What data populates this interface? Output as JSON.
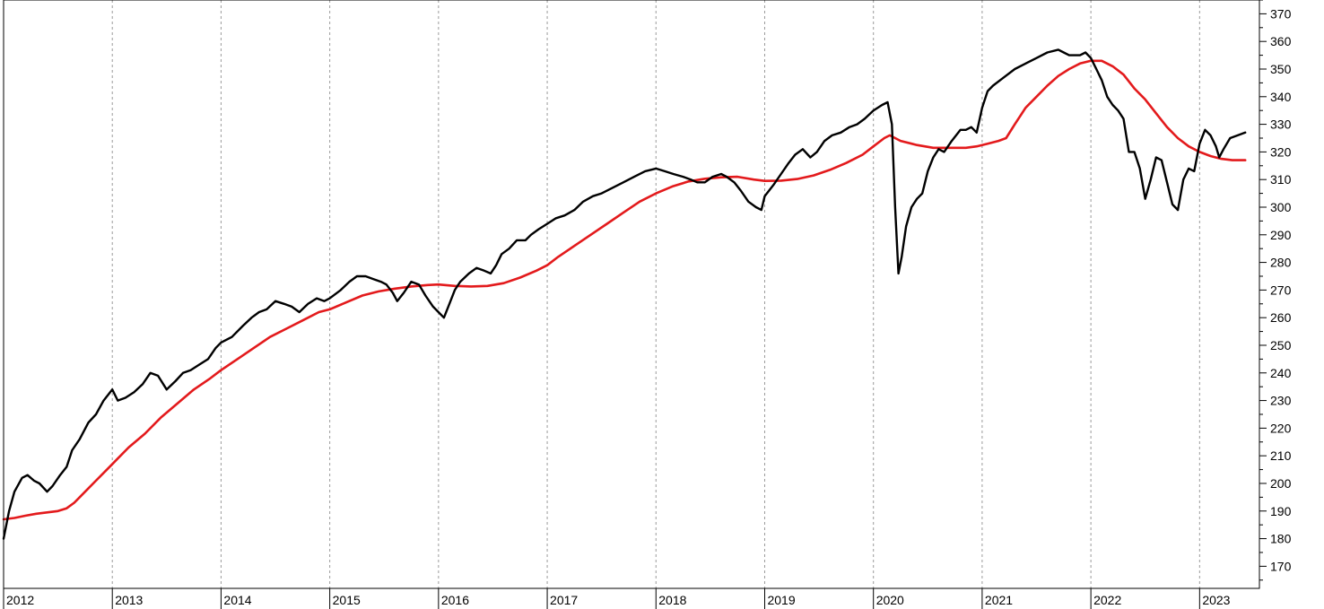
{
  "chart_data": {
    "type": "line",
    "title": "",
    "xlabel": "",
    "ylabel": "",
    "grid": "vertical dashed lines at each year",
    "x_ticks": [
      "2012",
      "2013",
      "2014",
      "2015",
      "2016",
      "2017",
      "2018",
      "2019",
      "2020",
      "2021",
      "2022",
      "2023"
    ],
    "y_ticks": [
      170,
      180,
      190,
      200,
      210,
      220,
      230,
      240,
      250,
      260,
      270,
      280,
      290,
      300,
      310,
      320,
      330,
      340,
      350,
      360,
      370
    ],
    "xlim": [
      2012.0,
      2023.55
    ],
    "ylim": [
      162,
      375
    ],
    "series": [
      {
        "color": "#000000",
        "points": [
          [
            2012.0,
            180
          ],
          [
            2012.05,
            190
          ],
          [
            2012.1,
            197
          ],
          [
            2012.17,
            202
          ],
          [
            2012.22,
            203
          ],
          [
            2012.28,
            201
          ],
          [
            2012.33,
            200
          ],
          [
            2012.4,
            197
          ],
          [
            2012.45,
            199
          ],
          [
            2012.52,
            203
          ],
          [
            2012.58,
            206
          ],
          [
            2012.63,
            212
          ],
          [
            2012.7,
            216
          ],
          [
            2012.78,
            222
          ],
          [
            2012.85,
            225
          ],
          [
            2012.92,
            230
          ],
          [
            2013.0,
            234
          ],
          [
            2013.05,
            230
          ],
          [
            2013.12,
            231
          ],
          [
            2013.2,
            233
          ],
          [
            2013.28,
            236
          ],
          [
            2013.35,
            240
          ],
          [
            2013.42,
            239
          ],
          [
            2013.5,
            234
          ],
          [
            2013.58,
            237
          ],
          [
            2013.65,
            240
          ],
          [
            2013.72,
            241
          ],
          [
            2013.8,
            243
          ],
          [
            2013.88,
            245
          ],
          [
            2013.95,
            249
          ],
          [
            2014.0,
            251
          ],
          [
            2014.1,
            253
          ],
          [
            2014.2,
            257
          ],
          [
            2014.28,
            260
          ],
          [
            2014.35,
            262
          ],
          [
            2014.42,
            263
          ],
          [
            2014.5,
            266
          ],
          [
            2014.58,
            265
          ],
          [
            2014.65,
            264
          ],
          [
            2014.72,
            262
          ],
          [
            2014.8,
            265
          ],
          [
            2014.88,
            267
          ],
          [
            2014.95,
            266
          ],
          [
            2015.0,
            267
          ],
          [
            2015.1,
            270
          ],
          [
            2015.18,
            273
          ],
          [
            2015.25,
            275
          ],
          [
            2015.33,
            275
          ],
          [
            2015.4,
            274
          ],
          [
            2015.47,
            273
          ],
          [
            2015.52,
            272
          ],
          [
            2015.58,
            269
          ],
          [
            2015.62,
            266
          ],
          [
            2015.68,
            269
          ],
          [
            2015.75,
            273
          ],
          [
            2015.82,
            272
          ],
          [
            2015.88,
            268
          ],
          [
            2015.95,
            264
          ],
          [
            2016.0,
            262
          ],
          [
            2016.05,
            260
          ],
          [
            2016.1,
            265
          ],
          [
            2016.15,
            270
          ],
          [
            2016.2,
            273
          ],
          [
            2016.28,
            276
          ],
          [
            2016.35,
            278
          ],
          [
            2016.42,
            277
          ],
          [
            2016.48,
            276
          ],
          [
            2016.53,
            279
          ],
          [
            2016.58,
            283
          ],
          [
            2016.65,
            285
          ],
          [
            2016.72,
            288
          ],
          [
            2016.8,
            288
          ],
          [
            2016.85,
            290
          ],
          [
            2016.92,
            292
          ],
          [
            2017.0,
            294
          ],
          [
            2017.08,
            296
          ],
          [
            2017.16,
            297
          ],
          [
            2017.25,
            299
          ],
          [
            2017.33,
            302
          ],
          [
            2017.42,
            304
          ],
          [
            2017.5,
            305
          ],
          [
            2017.6,
            307
          ],
          [
            2017.7,
            309
          ],
          [
            2017.8,
            311
          ],
          [
            2017.9,
            313
          ],
          [
            2018.0,
            314
          ],
          [
            2018.08,
            313
          ],
          [
            2018.16,
            312
          ],
          [
            2018.25,
            311
          ],
          [
            2018.32,
            310
          ],
          [
            2018.38,
            309
          ],
          [
            2018.45,
            309
          ],
          [
            2018.52,
            311
          ],
          [
            2018.6,
            312
          ],
          [
            2018.65,
            311
          ],
          [
            2018.72,
            309
          ],
          [
            2018.78,
            306
          ],
          [
            2018.85,
            302
          ],
          [
            2018.92,
            300
          ],
          [
            2018.97,
            299
          ],
          [
            2019.0,
            304
          ],
          [
            2019.08,
            308
          ],
          [
            2019.15,
            312
          ],
          [
            2019.22,
            316
          ],
          [
            2019.28,
            319
          ],
          [
            2019.35,
            321
          ],
          [
            2019.42,
            318
          ],
          [
            2019.48,
            320
          ],
          [
            2019.55,
            324
          ],
          [
            2019.62,
            326
          ],
          [
            2019.7,
            327
          ],
          [
            2019.78,
            329
          ],
          [
            2019.85,
            330
          ],
          [
            2019.92,
            332
          ],
          [
            2020.0,
            335
          ],
          [
            2020.08,
            337
          ],
          [
            2020.13,
            338
          ],
          [
            2020.17,
            330
          ],
          [
            2020.2,
            300
          ],
          [
            2020.23,
            276
          ],
          [
            2020.26,
            282
          ],
          [
            2020.3,
            293
          ],
          [
            2020.35,
            300
          ],
          [
            2020.4,
            303
          ],
          [
            2020.45,
            305
          ],
          [
            2020.5,
            313
          ],
          [
            2020.55,
            318
          ],
          [
            2020.6,
            321
          ],
          [
            2020.65,
            320
          ],
          [
            2020.72,
            324
          ],
          [
            2020.8,
            328
          ],
          [
            2020.85,
            328
          ],
          [
            2020.9,
            329
          ],
          [
            2020.95,
            327
          ],
          [
            2021.0,
            336
          ],
          [
            2021.05,
            342
          ],
          [
            2021.1,
            344
          ],
          [
            2021.2,
            347
          ],
          [
            2021.3,
            350
          ],
          [
            2021.4,
            352
          ],
          [
            2021.5,
            354
          ],
          [
            2021.6,
            356
          ],
          [
            2021.7,
            357
          ],
          [
            2021.75,
            356
          ],
          [
            2021.8,
            355
          ],
          [
            2021.85,
            355
          ],
          [
            2021.9,
            355
          ],
          [
            2021.95,
            356
          ],
          [
            2022.0,
            354
          ],
          [
            2022.05,
            350
          ],
          [
            2022.1,
            346
          ],
          [
            2022.15,
            340
          ],
          [
            2022.2,
            337
          ],
          [
            2022.25,
            335
          ],
          [
            2022.3,
            332
          ],
          [
            2022.35,
            320
          ],
          [
            2022.4,
            320
          ],
          [
            2022.45,
            314
          ],
          [
            2022.5,
            303
          ],
          [
            2022.55,
            310
          ],
          [
            2022.6,
            318
          ],
          [
            2022.65,
            317
          ],
          [
            2022.7,
            309
          ],
          [
            2022.75,
            301
          ],
          [
            2022.8,
            299
          ],
          [
            2022.85,
            310
          ],
          [
            2022.9,
            314
          ],
          [
            2022.95,
            313
          ],
          [
            2023.0,
            323
          ],
          [
            2023.05,
            328
          ],
          [
            2023.1,
            326
          ],
          [
            2023.15,
            322
          ],
          [
            2023.18,
            318
          ],
          [
            2023.22,
            321
          ],
          [
            2023.28,
            325
          ],
          [
            2023.35,
            326
          ],
          [
            2023.42,
            327
          ]
        ]
      },
      {
        "color": "#e31a1c",
        "points": [
          [
            2012.0,
            187
          ],
          [
            2012.1,
            187.5
          ],
          [
            2012.2,
            188.3
          ],
          [
            2012.3,
            189
          ],
          [
            2012.4,
            189.5
          ],
          [
            2012.5,
            190
          ],
          [
            2012.58,
            191
          ],
          [
            2012.65,
            193
          ],
          [
            2012.75,
            197
          ],
          [
            2012.85,
            201
          ],
          [
            2012.95,
            205
          ],
          [
            2013.05,
            209
          ],
          [
            2013.15,
            213
          ],
          [
            2013.3,
            218
          ],
          [
            2013.45,
            224
          ],
          [
            2013.6,
            229
          ],
          [
            2013.75,
            234
          ],
          [
            2013.9,
            238
          ],
          [
            2014.0,
            241
          ],
          [
            2014.15,
            245
          ],
          [
            2014.3,
            249
          ],
          [
            2014.45,
            253
          ],
          [
            2014.6,
            256
          ],
          [
            2014.75,
            259
          ],
          [
            2014.9,
            262
          ],
          [
            2015.0,
            263
          ],
          [
            2015.15,
            265.5
          ],
          [
            2015.3,
            268
          ],
          [
            2015.45,
            269.5
          ],
          [
            2015.6,
            270.5
          ],
          [
            2015.75,
            271.3
          ],
          [
            2015.9,
            271.8
          ],
          [
            2016.0,
            272
          ],
          [
            2016.15,
            271.5
          ],
          [
            2016.3,
            271.3
          ],
          [
            2016.45,
            271.5
          ],
          [
            2016.6,
            272.5
          ],
          [
            2016.75,
            274.5
          ],
          [
            2016.9,
            277
          ],
          [
            2017.0,
            279
          ],
          [
            2017.1,
            282
          ],
          [
            2017.25,
            286
          ],
          [
            2017.4,
            290
          ],
          [
            2017.55,
            294
          ],
          [
            2017.7,
            298
          ],
          [
            2017.85,
            302
          ],
          [
            2018.0,
            305
          ],
          [
            2018.15,
            307.5
          ],
          [
            2018.3,
            309.3
          ],
          [
            2018.45,
            310.3
          ],
          [
            2018.6,
            310.8
          ],
          [
            2018.75,
            311
          ],
          [
            2018.9,
            310
          ],
          [
            2019.0,
            309.5
          ],
          [
            2019.15,
            309.6
          ],
          [
            2019.3,
            310.2
          ],
          [
            2019.45,
            311.5
          ],
          [
            2019.6,
            313.5
          ],
          [
            2019.75,
            316
          ],
          [
            2019.9,
            319
          ],
          [
            2020.0,
            322
          ],
          [
            2020.1,
            325
          ],
          [
            2020.15,
            326
          ],
          [
            2020.25,
            324
          ],
          [
            2020.4,
            322.5
          ],
          [
            2020.55,
            321.5
          ],
          [
            2020.7,
            321.5
          ],
          [
            2020.85,
            321.5
          ],
          [
            2020.95,
            322
          ],
          [
            2021.05,
            323
          ],
          [
            2021.15,
            324
          ],
          [
            2021.22,
            325
          ],
          [
            2021.3,
            330
          ],
          [
            2021.4,
            336
          ],
          [
            2021.5,
            340
          ],
          [
            2021.6,
            344
          ],
          [
            2021.7,
            347.5
          ],
          [
            2021.8,
            350
          ],
          [
            2021.9,
            352
          ],
          [
            2022.0,
            353
          ],
          [
            2022.1,
            353
          ],
          [
            2022.2,
            351
          ],
          [
            2022.3,
            348
          ],
          [
            2022.4,
            343
          ],
          [
            2022.5,
            339
          ],
          [
            2022.6,
            334
          ],
          [
            2022.7,
            329
          ],
          [
            2022.8,
            325
          ],
          [
            2022.9,
            322
          ],
          [
            2023.0,
            320
          ],
          [
            2023.1,
            318.5
          ],
          [
            2023.2,
            317.5
          ],
          [
            2023.3,
            317
          ],
          [
            2023.42,
            317
          ]
        ]
      }
    ]
  }
}
